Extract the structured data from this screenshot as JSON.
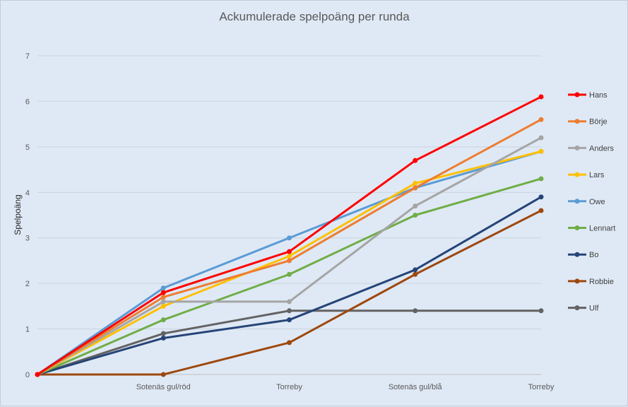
{
  "chart_data": {
    "type": "line",
    "title": "Ackumulerade spelpoäng per runda",
    "xlabel": "",
    "ylabel": "Spelpoäng",
    "categories": [
      "",
      "Sotenäs gul/röd",
      "Torreby",
      "Sotenäs gul/blå",
      "Torreby"
    ],
    "ylim": [
      0,
      7
    ],
    "yticks": [
      0,
      1,
      2,
      3,
      4,
      5,
      6,
      7
    ],
    "grid": true,
    "legend_position": "right",
    "series": [
      {
        "name": "Hans",
        "color": "#ff0000",
        "values": [
          0,
          1.8,
          2.7,
          4.7,
          6.1
        ]
      },
      {
        "name": "Börje",
        "color": "#ed7d31",
        "values": [
          0,
          1.7,
          2.5,
          4.1,
          5.6
        ]
      },
      {
        "name": "Anders",
        "color": "#a5a5a5",
        "values": [
          0,
          1.6,
          1.6,
          3.7,
          5.2
        ]
      },
      {
        "name": "Lars",
        "color": "#ffc000",
        "values": [
          0,
          1.5,
          2.6,
          4.2,
          4.9
        ]
      },
      {
        "name": "Owe",
        "color": "#5b9bd5",
        "values": [
          0,
          1.9,
          3.0,
          4.1,
          4.9
        ]
      },
      {
        "name": "Lennart",
        "color": "#70ad47",
        "values": [
          0,
          1.2,
          2.2,
          3.5,
          4.3
        ]
      },
      {
        "name": "Bo",
        "color": "#264478",
        "values": [
          0,
          0.8,
          1.2,
          2.3,
          3.9
        ]
      },
      {
        "name": "Robbie",
        "color": "#9e480e",
        "values": [
          0,
          0.0,
          0.7,
          2.2,
          3.6
        ]
      },
      {
        "name": "Ulf",
        "color": "#636363",
        "values": [
          0,
          0.9,
          1.4,
          1.4,
          1.4
        ]
      }
    ]
  }
}
